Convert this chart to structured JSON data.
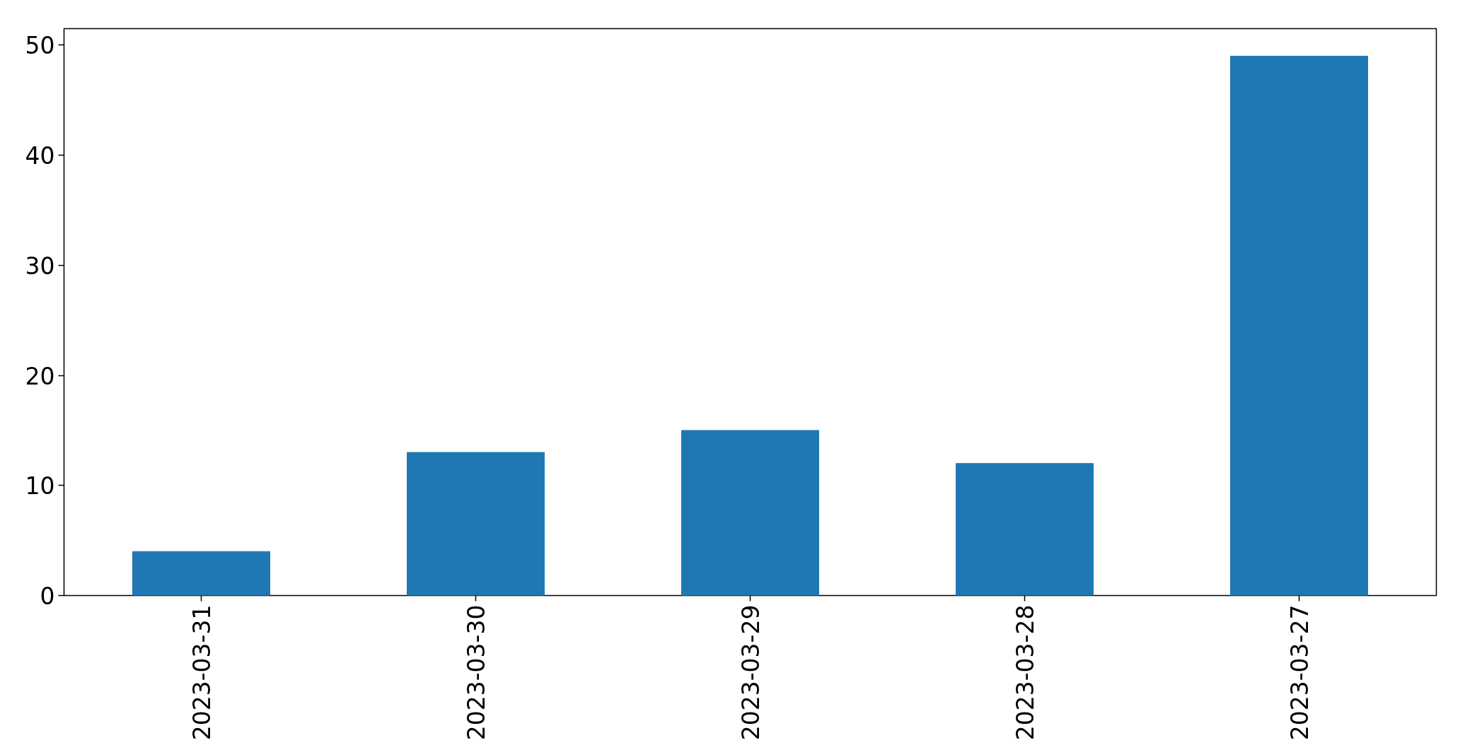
{
  "chart_data": {
    "type": "bar",
    "categories": [
      "2023-03-31",
      "2023-03-30",
      "2023-03-29",
      "2023-03-28",
      "2023-03-27"
    ],
    "values": [
      4,
      13,
      15,
      12,
      49
    ],
    "color": "#1f77b4",
    "ylim": [
      0,
      51.5
    ],
    "yticks": [
      0,
      10,
      20,
      30,
      40,
      50
    ],
    "grid": false
  }
}
